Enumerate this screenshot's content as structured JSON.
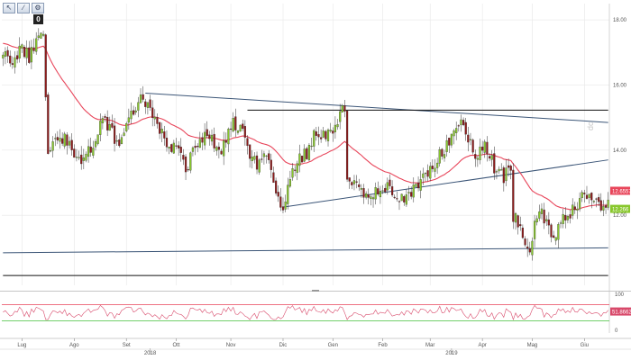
{
  "toolbar": {
    "buttons": [
      {
        "name": "cursor-tool-button",
        "glyph": "↖"
      },
      {
        "name": "draw-tool-button",
        "glyph": "∕"
      },
      {
        "name": "settings-tool-button",
        "glyph": "⚙"
      }
    ],
    "badge": "0"
  },
  "watermark": "dc",
  "colors": {
    "bull": "#88c72c",
    "bear": "#8e1a1a",
    "ma": "#e8455a",
    "trend": "#3b5577",
    "hline": "#111111",
    "rsi_line": "#d8496a",
    "rsi_upper": "#e8455a",
    "rsi_lower": "#43bf3b",
    "grid": "#e7e7e7",
    "price_tag": "#e8455a",
    "ma_tag": "#88c72c"
  },
  "chart_data": {
    "type": "candlestick",
    "title": "",
    "xlabel": "",
    "ylabel": "",
    "ylim": [
      9.85,
      18.5
    ],
    "yticks": [
      12.0,
      14.0,
      16.0,
      18.0
    ],
    "ytick_labels": [
      "12.00",
      "14.00",
      "16.00",
      "18.00"
    ],
    "grid": true,
    "months": [
      {
        "label": "Lug",
        "t": 8
      },
      {
        "label": "Ago",
        "t": 30
      },
      {
        "label": "Set",
        "t": 52
      },
      {
        "label": "Ott",
        "t": 73
      },
      {
        "label": "Nov",
        "t": 96
      },
      {
        "label": "Dic",
        "t": 118
      },
      {
        "label": "Gen",
        "t": 139
      },
      {
        "label": "Feb",
        "t": 160
      },
      {
        "label": "Mar",
        "t": 180
      },
      {
        "label": "Apr",
        "t": 202
      },
      {
        "label": "Mag",
        "t": 223
      },
      {
        "label": "Giu",
        "t": 245
      }
    ],
    "years": [
      {
        "label": "2018",
        "t": 62
      },
      {
        "label": "2019",
        "t": 189
      }
    ],
    "bar_count": 256,
    "anchors": [
      [
        0,
        17.0
      ],
      [
        4,
        16.7
      ],
      [
        8,
        17.2
      ],
      [
        11,
        16.8
      ],
      [
        15,
        17.5
      ],
      [
        17,
        17.6
      ],
      [
        19,
        14.0
      ],
      [
        23,
        14.4
      ],
      [
        28,
        14.3
      ],
      [
        32,
        13.6
      ],
      [
        37,
        14.1
      ],
      [
        42,
        14.9
      ],
      [
        46,
        14.5
      ],
      [
        49,
        14.2
      ],
      [
        53,
        15.0
      ],
      [
        58,
        15.6
      ],
      [
        61,
        15.5
      ],
      [
        63,
        15.0
      ],
      [
        66,
        14.6
      ],
      [
        70,
        14.2
      ],
      [
        74,
        14.0
      ],
      [
        77,
        13.4
      ],
      [
        81,
        14.1
      ],
      [
        85,
        14.4
      ],
      [
        88,
        14.3
      ],
      [
        91,
        13.9
      ],
      [
        94,
        14.3
      ],
      [
        97,
        14.9
      ],
      [
        101,
        14.5
      ],
      [
        105,
        13.7
      ],
      [
        108,
        13.5
      ],
      [
        111,
        13.8
      ],
      [
        115,
        12.6
      ],
      [
        118,
        12.3
      ],
      [
        121,
        13.0
      ],
      [
        124,
        13.7
      ],
      [
        128,
        13.9
      ],
      [
        131,
        14.4
      ],
      [
        135,
        14.5
      ],
      [
        139,
        14.5
      ],
      [
        142,
        15.0
      ],
      [
        143,
        15.3
      ],
      [
        144,
        15.2
      ],
      [
        145,
        13.3
      ],
      [
        149,
        12.9
      ],
      [
        153,
        12.6
      ],
      [
        157,
        12.8
      ],
      [
        161,
        12.9
      ],
      [
        165,
        12.6
      ],
      [
        169,
        12.6
      ],
      [
        173,
        12.8
      ],
      [
        177,
        13.2
      ],
      [
        181,
        13.4
      ],
      [
        185,
        14.0
      ],
      [
        189,
        14.3
      ],
      [
        192,
        14.8
      ],
      [
        195,
        14.6
      ],
      [
        198,
        14.0
      ],
      [
        200,
        13.8
      ],
      [
        203,
        14.2
      ],
      [
        205,
        13.8
      ],
      [
        208,
        13.3
      ],
      [
        211,
        13.2
      ],
      [
        213,
        13.6
      ],
      [
        214,
        13.5
      ],
      [
        215,
        12.0
      ],
      [
        217,
        11.7
      ],
      [
        219,
        11.3
      ],
      [
        222,
        11.0
      ],
      [
        224,
        11.8
      ],
      [
        227,
        12.0
      ],
      [
        230,
        11.6
      ],
      [
        233,
        11.4
      ],
      [
        236,
        12.0
      ],
      [
        239,
        12.1
      ],
      [
        242,
        12.3
      ],
      [
        245,
        12.6
      ],
      [
        248,
        12.5
      ],
      [
        251,
        12.4
      ],
      [
        253,
        12.3
      ],
      [
        255,
        12.3
      ]
    ],
    "trendlines": [
      {
        "name": "upper-triangle-line",
        "t0": 60,
        "p0": 15.75,
        "t1": 255,
        "p1": 14.85
      },
      {
        "name": "lower-triangle-line",
        "t0": 118,
        "p0": 12.25,
        "t1": 255,
        "p1": 13.7
      },
      {
        "name": "bottom-support-line",
        "t0": 0,
        "p0": 10.85,
        "t1": 255,
        "p1": 11.0
      }
    ],
    "hlines": [
      {
        "name": "resistance-hline",
        "t0": 103,
        "t1": 255,
        "p": 15.23
      },
      {
        "name": "bottom-hline",
        "t0": 0,
        "t1": 255,
        "p": 10.15
      }
    ],
    "price_tags": [
      {
        "name": "ma-value-tag",
        "value": "12.6557",
        "role": "ma"
      },
      {
        "name": "last-price-tag",
        "value": "12.266",
        "role": "price"
      }
    ],
    "rsi": {
      "ylim": [
        0,
        100
      ],
      "upper": 70,
      "lower": 30,
      "ytick_labels": [
        "100",
        "0"
      ],
      "last_label": "51.8662"
    }
  }
}
